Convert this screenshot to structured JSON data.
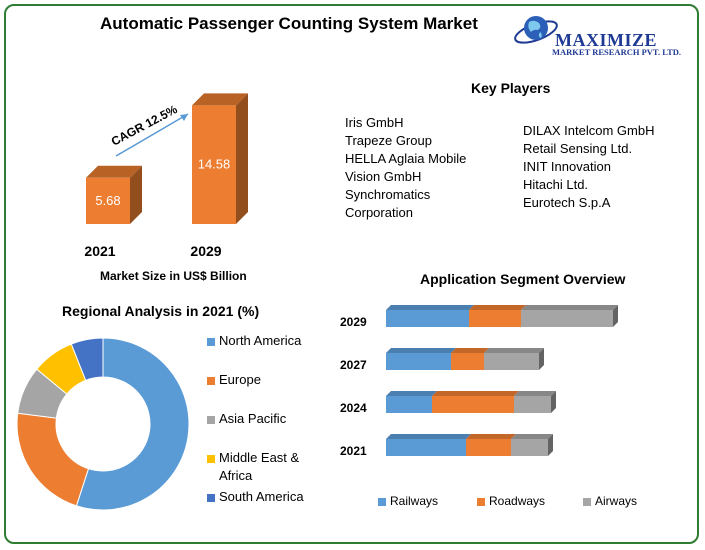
{
  "title": "Automatic Passenger Counting System Market",
  "logo": {
    "name": "MAXIMIZE",
    "sub": "MARKET RESEARCH PVT. LTD.",
    "icon": "globe-icon"
  },
  "colors": {
    "orange": "#ed7d31",
    "blue": "#5b9bd5",
    "gray": "#a5a5a5",
    "yellow": "#ffc000",
    "darkblue": "#4472c4",
    "border": "#2e7d32"
  },
  "key_players": {
    "title": "Key Players",
    "col1": [
      "Iris GmbH",
      "Trapeze Group",
      "HELLA Aglaia Mobile",
      "Vision GmbH",
      "Synchromatics",
      "Corporation"
    ],
    "col2": [
      "DILAX Intelcom GmbH",
      "Retail Sensing Ltd.",
      "INIT Innovation",
      "Hitachi Ltd.",
      "Eurotech S.p.A"
    ]
  },
  "chart_data": [
    {
      "type": "bar",
      "categories": [
        "2021",
        "2029"
      ],
      "values": [
        5.68,
        14.58
      ],
      "title": "",
      "xlabel": "Market Size in US$ Billion",
      "annotation": "CAGR 12.5%"
    },
    {
      "type": "pie",
      "title": "Regional Analysis in 2021 (%)",
      "labels": [
        "North America",
        "Europe",
        "Asia Pacific",
        "Middle East & Africa",
        "South America"
      ],
      "values": [
        55,
        22,
        9,
        8,
        6
      ]
    },
    {
      "type": "bar",
      "orientation": "horizontal",
      "stacked": true,
      "title": "Application Segment Overview",
      "categories": [
        "2029",
        "2027",
        "2024",
        "2021"
      ],
      "series": [
        {
          "name": "Railways",
          "values": [
            83,
            65,
            46,
            80
          ]
        },
        {
          "name": "Roadways",
          "values": [
            52,
            33,
            82,
            45
          ]
        },
        {
          "name": "Airways",
          "values": [
            92,
            55,
            37,
            37
          ]
        }
      ],
      "legend": "bottom"
    }
  ]
}
